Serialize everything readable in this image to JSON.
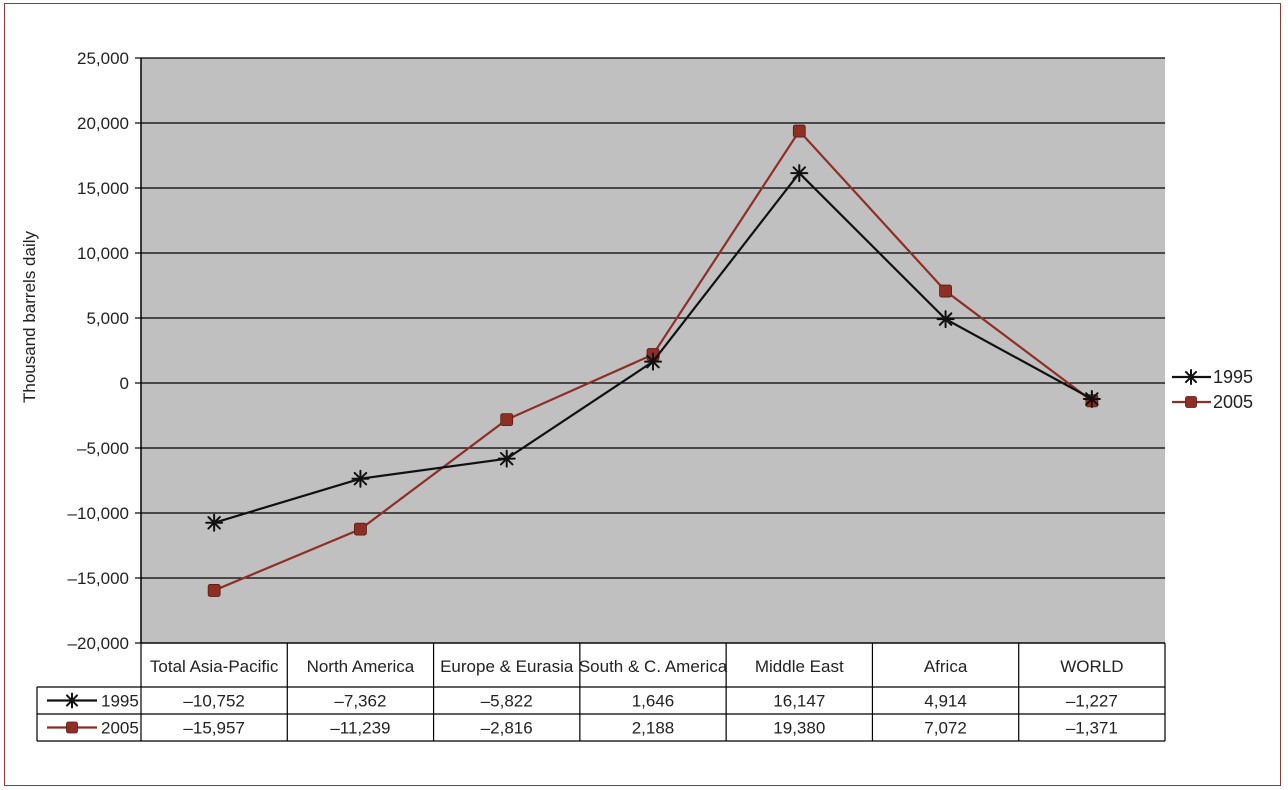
{
  "chart_data": {
    "type": "line",
    "title": "",
    "xlabel": "",
    "ylabel": "Thousand barrels daily",
    "categories": [
      "Total Asia-Pacific",
      "North America",
      "Europe & Eurasia",
      "South & C. America",
      "Middle East",
      "Africa",
      "WORLD"
    ],
    "series": [
      {
        "name": "1995",
        "values": [
          -10752,
          -7362,
          -5822,
          1646,
          16147,
          4914,
          -1227
        ],
        "color": "#111111",
        "marker": "star"
      },
      {
        "name": "2005",
        "values": [
          -15957,
          -11239,
          -2816,
          2188,
          19380,
          7072,
          -1371
        ],
        "color": "#8e2f26",
        "marker": "square"
      }
    ],
    "ylim": [
      -20000,
      25000
    ],
    "yticks": [
      25000,
      20000,
      15000,
      10000,
      5000,
      0,
      -5000,
      -10000,
      -15000,
      -20000
    ],
    "ytick_labels": [
      "25,000",
      "20,000",
      "15,000",
      "10,000",
      "5,000",
      "0",
      "–5,000",
      "–10,000",
      "–15,000",
      "–20,000"
    ],
    "table_values": [
      [
        "–10,752",
        "–7,362",
        "–5,822",
        "1,646",
        "16,147",
        "4,914",
        "–1,227"
      ],
      [
        "–15,957",
        "–11,239",
        "–2,816",
        "2,188",
        "19,380",
        "7,072",
        "–1,371"
      ]
    ],
    "grid": true,
    "plot_background": "#c0c0c0",
    "legend_position": "right"
  }
}
